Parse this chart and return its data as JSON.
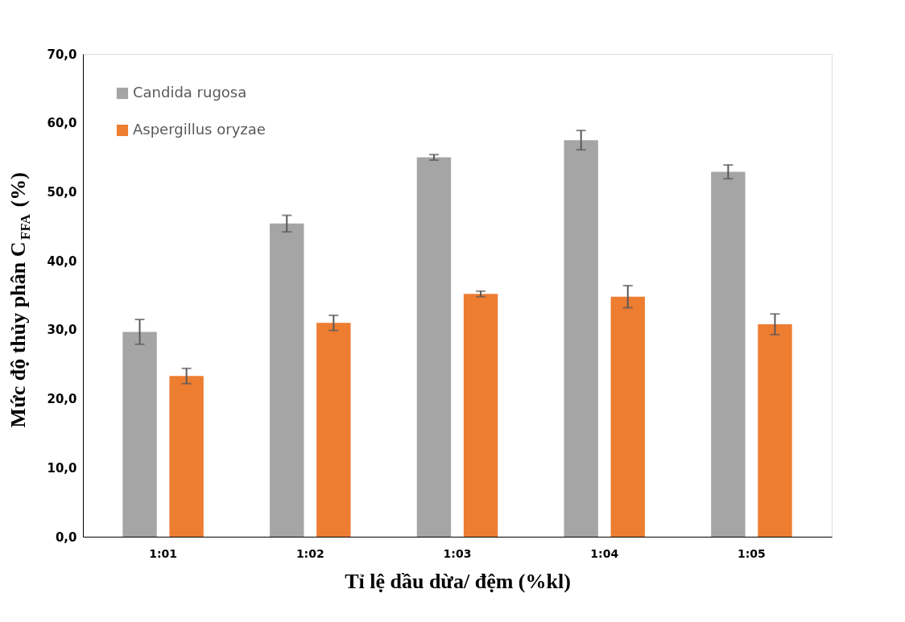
{
  "chart_data": {
    "type": "bar",
    "xlabel": "Tỉ lệ dầu dừa/ đệm (%kl)",
    "ylabel": "Mức độ thủy phân C$_{FFA}$ (%)",
    "categories": [
      "1:01",
      "1:02",
      "1:03",
      "1:04",
      "1:05"
    ],
    "series": [
      {
        "name": "Candida rugosa",
        "color": "#a5a5a5",
        "values": [
          29.7,
          45.4,
          55.0,
          57.5,
          52.9
        ],
        "errors": [
          1.8,
          1.2,
          0.4,
          1.4,
          1.0
        ]
      },
      {
        "name": "Aspergillus oryzae",
        "color": "#ed7d31",
        "values": [
          23.3,
          31.0,
          35.2,
          34.8,
          30.8
        ],
        "errors": [
          1.1,
          1.1,
          0.4,
          1.6,
          1.5
        ]
      }
    ],
    "ylim": [
      0,
      70
    ],
    "yticks": [
      {
        "value": 0,
        "label": "0,0"
      },
      {
        "value": 10,
        "label": "10,0"
      },
      {
        "value": 20,
        "label": "20,0"
      },
      {
        "value": 30,
        "label": "30,0"
      },
      {
        "value": 40,
        "label": "40,0"
      },
      {
        "value": 50,
        "label": "50,0"
      },
      {
        "value": 60,
        "label": "60,0"
      },
      {
        "value": 70,
        "label": "70,0"
      }
    ],
    "grid": false,
    "legend": "top left"
  }
}
